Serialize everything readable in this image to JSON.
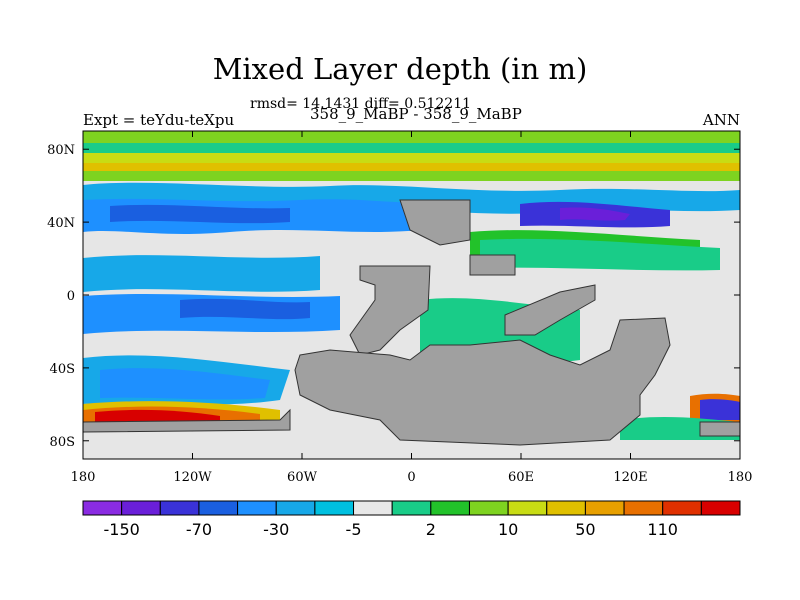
{
  "title": "Mixed Layer depth (in m)",
  "stats": "rmsd= 14.1431 diff= 0.512211",
  "subtitle": "358_9_MaBP - 358_9_MaBP",
  "left_label": "Expt = teYdu-teXpu",
  "right_label": "ANN",
  "chart_data": {
    "type": "heatmap",
    "x_ticks": [
      "180",
      "120W",
      "60W",
      "0",
      "60E",
      "120E",
      "180"
    ],
    "y_ticks": [
      "80N",
      "40N",
      "0",
      "40S",
      "80S"
    ],
    "x_tick_values": [
      -180,
      -120,
      -60,
      0,
      60,
      120,
      180
    ],
    "y_tick_values": [
      80,
      40,
      0,
      -40,
      -80
    ],
    "xlim": [
      -180,
      180
    ],
    "ylim": [
      -90,
      90
    ],
    "colorbar_labels": [
      "-150",
      "-70",
      "-30",
      "-5",
      "2",
      "10",
      "50",
      "110"
    ],
    "colorbar_colors": [
      "#8a2be2",
      "#6a1fd9",
      "#3a32d8",
      "#1a5fe0",
      "#1e90ff",
      "#17a8e8",
      "#00c0e0",
      "#e8e8e8",
      "#19cc88",
      "#22c22a",
      "#7ed320",
      "#c8dc14",
      "#e0c000",
      "#e8a000",
      "#e87000",
      "#e03000",
      "#d80000"
    ],
    "land_color": "#a0a0a0"
  }
}
